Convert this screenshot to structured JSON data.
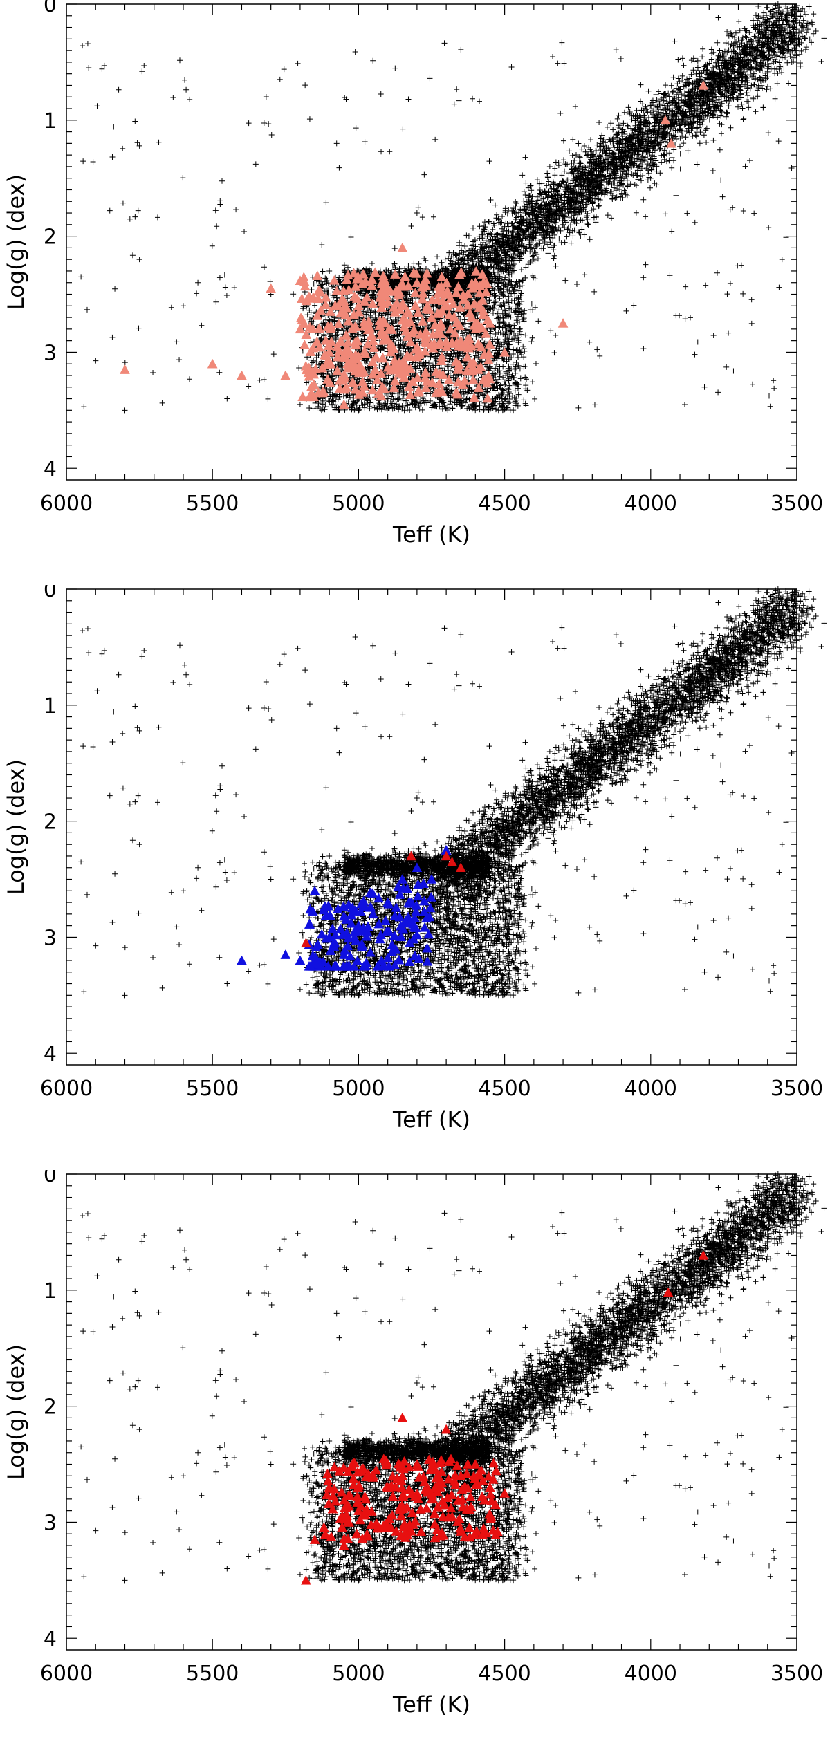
{
  "chart_data": [
    {
      "type": "scatter",
      "xlabel": "Teff (K)",
      "ylabel": "Log(g) (dex)",
      "xlim": [
        6000,
        3500
      ],
      "ylim": [
        4.1,
        0
      ],
      "x_ticks": [
        6000,
        5500,
        5000,
        4500,
        4000,
        3500
      ],
      "y_ticks": [
        0,
        1,
        2,
        3,
        4
      ],
      "y_axis_inverted": true,
      "x_axis_inverted": true,
      "background_series": {
        "marker": "plus",
        "color": "#000000",
        "sample_points": [
          [
            5950,
            2.35
          ],
          [
            5800,
            3.5
          ],
          [
            5750,
            2.2
          ],
          [
            5600,
            2.6
          ],
          [
            5550,
            2.4
          ],
          [
            5450,
            3.4
          ],
          [
            5300,
            2.5
          ],
          [
            5200,
            3.45
          ],
          [
            5100,
            2.3
          ],
          [
            5000,
            3.5
          ],
          [
            4900,
            2.4
          ],
          [
            4800,
            1.8
          ],
          [
            4700,
            2.45
          ],
          [
            4600,
            2.3
          ],
          [
            4500,
            2.6
          ],
          [
            4400,
            2.2
          ],
          [
            4300,
            1.9
          ],
          [
            4200,
            1.7
          ],
          [
            4100,
            1.5
          ],
          [
            4000,
            1.2
          ],
          [
            3900,
            0.9
          ],
          [
            3800,
            0.6
          ],
          [
            3700,
            0.3
          ],
          [
            3600,
            0.2
          ],
          [
            3500,
            0.3
          ]
        ]
      },
      "highlight_series": {
        "marker": "triangle",
        "color": "#f08878",
        "sample_points": [
          [
            5800,
            3.15
          ],
          [
            5500,
            3.1
          ],
          [
            5400,
            3.2
          ],
          [
            5300,
            2.45
          ],
          [
            5250,
            3.2
          ],
          [
            5200,
            2.8
          ],
          [
            5100,
            3.0
          ],
          [
            5050,
            3.45
          ],
          [
            5000,
            2.6
          ],
          [
            4950,
            2.9
          ],
          [
            4900,
            2.45
          ],
          [
            4850,
            2.1
          ],
          [
            4800,
            2.4
          ],
          [
            4750,
            2.7
          ],
          [
            4700,
            2.5
          ],
          [
            4650,
            2.9
          ],
          [
            4600,
            2.4
          ],
          [
            4550,
            2.75
          ],
          [
            4500,
            3.0
          ],
          [
            4300,
            2.75
          ],
          [
            3950,
            1.0
          ],
          [
            3930,
            1.2
          ],
          [
            3820,
            0.7
          ]
        ]
      }
    },
    {
      "type": "scatter",
      "xlabel": "Teff (K)",
      "ylabel": "Log(g) (dex)",
      "xlim": [
        6000,
        3500
      ],
      "ylim": [
        4.1,
        0
      ],
      "x_ticks": [
        6000,
        5500,
        5000,
        4500,
        4000,
        3500
      ],
      "y_ticks": [
        0,
        1,
        2,
        3,
        4
      ],
      "y_axis_inverted": true,
      "x_axis_inverted": true,
      "background_series": {
        "marker": "plus",
        "color": "#000000",
        "sample_points": [
          [
            5950,
            2.35
          ],
          [
            5800,
            3.5
          ],
          [
            5750,
            2.2
          ],
          [
            5600,
            2.6
          ],
          [
            5550,
            2.4
          ],
          [
            5450,
            3.4
          ],
          [
            5300,
            2.5
          ],
          [
            5200,
            3.45
          ],
          [
            5100,
            2.3
          ],
          [
            5000,
            3.5
          ],
          [
            4900,
            2.4
          ],
          [
            4800,
            1.8
          ],
          [
            4700,
            2.45
          ],
          [
            4600,
            2.3
          ],
          [
            4500,
            2.6
          ],
          [
            4400,
            2.2
          ],
          [
            4300,
            1.9
          ],
          [
            4200,
            1.7
          ],
          [
            4100,
            1.5
          ],
          [
            4000,
            1.2
          ],
          [
            3900,
            0.9
          ],
          [
            3800,
            0.6
          ],
          [
            3700,
            0.3
          ],
          [
            3600,
            0.2
          ],
          [
            3500,
            0.3
          ]
        ]
      },
      "highlight_series": {
        "marker": "triangle",
        "color": "#1010e0",
        "sample_points": [
          [
            5400,
            3.2
          ],
          [
            5250,
            3.15
          ],
          [
            5200,
            3.2
          ],
          [
            5150,
            2.6
          ],
          [
            5100,
            3.0
          ],
          [
            5050,
            3.15
          ],
          [
            5000,
            2.9
          ],
          [
            4950,
            2.8
          ],
          [
            4900,
            2.7
          ],
          [
            4850,
            2.5
          ],
          [
            4800,
            2.4
          ],
          [
            4750,
            2.5
          ],
          [
            4700,
            2.25
          ]
        ]
      },
      "accent_series": {
        "marker": "triangle",
        "color": "#e01010",
        "sample_points": [
          [
            5180,
            3.05
          ],
          [
            4820,
            2.3
          ],
          [
            4700,
            2.3
          ],
          [
            4680,
            2.35
          ],
          [
            4650,
            2.4
          ]
        ]
      }
    },
    {
      "type": "scatter",
      "xlabel": "Teff (K)",
      "ylabel": "Log(g) (dex)",
      "xlim": [
        6000,
        3500
      ],
      "ylim": [
        4.1,
        0
      ],
      "x_ticks": [
        6000,
        5500,
        5000,
        4500,
        4000,
        3500
      ],
      "y_ticks": [
        0,
        1,
        2,
        3,
        4
      ],
      "y_axis_inverted": true,
      "x_axis_inverted": true,
      "background_series": {
        "marker": "plus",
        "color": "#000000",
        "sample_points": [
          [
            5950,
            2.35
          ],
          [
            5800,
            3.5
          ],
          [
            5750,
            2.2
          ],
          [
            5600,
            2.6
          ],
          [
            5550,
            2.4
          ],
          [
            5450,
            3.4
          ],
          [
            5300,
            2.5
          ],
          [
            5200,
            3.45
          ],
          [
            5100,
            2.3
          ],
          [
            5000,
            3.5
          ],
          [
            4900,
            2.4
          ],
          [
            4800,
            1.8
          ],
          [
            4700,
            2.45
          ],
          [
            4600,
            2.3
          ],
          [
            4500,
            2.6
          ],
          [
            4400,
            2.2
          ],
          [
            4300,
            1.9
          ],
          [
            4200,
            1.7
          ],
          [
            4100,
            1.5
          ],
          [
            4000,
            1.2
          ],
          [
            3900,
            0.9
          ],
          [
            3800,
            0.6
          ],
          [
            3700,
            0.3
          ],
          [
            3600,
            0.2
          ],
          [
            3500,
            0.3
          ]
        ]
      },
      "highlight_series": {
        "marker": "triangle",
        "color": "#e81010",
        "sample_points": [
          [
            5180,
            3.5
          ],
          [
            5150,
            3.15
          ],
          [
            5100,
            2.7
          ],
          [
            5050,
            3.2
          ],
          [
            5000,
            2.9
          ],
          [
            4950,
            2.6
          ],
          [
            4900,
            2.7
          ],
          [
            4850,
            2.1
          ],
          [
            4800,
            2.5
          ],
          [
            4750,
            2.8
          ],
          [
            4700,
            2.2
          ],
          [
            4650,
            2.6
          ],
          [
            4600,
            2.5
          ],
          [
            4550,
            2.7
          ],
          [
            4500,
            2.75
          ],
          [
            3940,
            1.02
          ],
          [
            3820,
            0.7
          ]
        ]
      }
    }
  ]
}
